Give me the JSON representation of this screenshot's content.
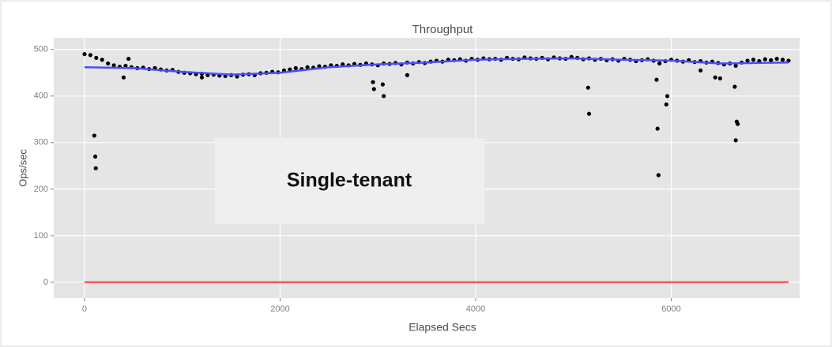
{
  "chart_data": {
    "type": "scatter",
    "title": "Throughput",
    "x_label": "Elapsed Secs",
    "y_label": "Ops/sec",
    "annotation": "Single-tenant",
    "xlim": [
      -315,
      7313
    ],
    "ylim": [
      -34,
      525
    ],
    "xticks": [
      0,
      2000,
      4000,
      6000
    ],
    "yticks": [
      0,
      100,
      200,
      300,
      400,
      500
    ],
    "grid": true,
    "series": [
      {
        "mode": "markers",
        "color": "#000000",
        "x": [
          0,
          60,
          120,
          180,
          240,
          300,
          360,
          420,
          480,
          540,
          600,
          660,
          720,
          780,
          840,
          900,
          960,
          1020,
          1080,
          1140,
          1200,
          1260,
          1320,
          1380,
          1440,
          1500,
          1560,
          1620,
          1680,
          1740,
          1800,
          1860,
          1920,
          1980,
          2040,
          2100,
          2160,
          2220,
          2280,
          2340,
          2400,
          2460,
          2520,
          2580,
          2640,
          2700,
          2760,
          2820,
          2880,
          2940,
          3000,
          3060,
          3120,
          3180,
          3240,
          3300,
          3360,
          3420,
          3480,
          3540,
          3600,
          3660,
          3720,
          3780,
          3840,
          3900,
          3960,
          4020,
          4080,
          4140,
          4200,
          4260,
          4320,
          4380,
          4440,
          4500,
          4560,
          4620,
          4680,
          4740,
          4800,
          4860,
          4920,
          4980,
          5040,
          5100,
          5160,
          5220,
          5280,
          5340,
          5400,
          5460,
          5520,
          5580,
          5640,
          5700,
          5760,
          5820,
          5880,
          5940,
          6000,
          6060,
          6120,
          6180,
          6240,
          6300,
          6360,
          6420,
          6480,
          6540,
          6600,
          6660,
          6720,
          6780,
          6840,
          6900,
          6960,
          7020,
          7080,
          7140,
          7200,
          100,
          110,
          115,
          400,
          450,
          1200,
          2950,
          2960,
          3050,
          3060,
          3300,
          5150,
          5160,
          5850,
          5860,
          5870,
          5950,
          5960,
          6300,
          6450,
          6500,
          6650,
          6660,
          6670,
          6680
        ],
        "values": [
          490,
          488,
          482,
          478,
          470,
          466,
          463,
          465,
          462,
          460,
          461,
          458,
          460,
          457,
          455,
          456,
          452,
          450,
          449,
          447,
          448,
          445,
          446,
          444,
          443,
          445,
          442,
          446,
          447,
          445,
          449,
          450,
          452,
          451,
          455,
          457,
          460,
          458,
          462,
          461,
          464,
          463,
          466,
          465,
          468,
          466,
          469,
          467,
          470,
          468,
          466,
          470,
          469,
          471,
          468,
          472,
          470,
          473,
          471,
          474,
          476,
          474,
          478,
          477,
          479,
          476,
          480,
          478,
          481,
          479,
          480,
          478,
          482,
          480,
          479,
          483,
          481,
          480,
          482,
          479,
          483,
          481,
          480,
          484,
          482,
          479,
          481,
          478,
          480,
          477,
          479,
          476,
          480,
          478,
          475,
          477,
          479,
          476,
          470,
          475,
          478,
          476,
          474,
          477,
          473,
          475,
          472,
          474,
          471,
          468,
          470,
          465,
          472,
          476,
          478,
          475,
          479,
          477,
          480,
          478,
          476,
          315,
          270,
          245,
          440,
          480,
          440,
          430,
          415,
          425,
          400,
          445,
          418,
          362,
          435,
          330,
          230,
          382,
          400,
          455,
          440,
          438,
          420,
          305,
          345,
          340
        ]
      },
      {
        "mode": "line",
        "color": "#4c4cff",
        "x": [
          0,
          500,
          1000,
          1500,
          2000,
          2500,
          3000,
          3500,
          4000,
          4500,
          5000,
          5500,
          6000,
          6500,
          7200
        ],
        "values": [
          462,
          460,
          452,
          446,
          450,
          462,
          468,
          472,
          478,
          480,
          481,
          478,
          476,
          470,
          472
        ]
      },
      {
        "mode": "line",
        "color": "#f25c5c",
        "x": [
          0,
          7200
        ],
        "values": [
          0,
          0
        ]
      }
    ]
  }
}
